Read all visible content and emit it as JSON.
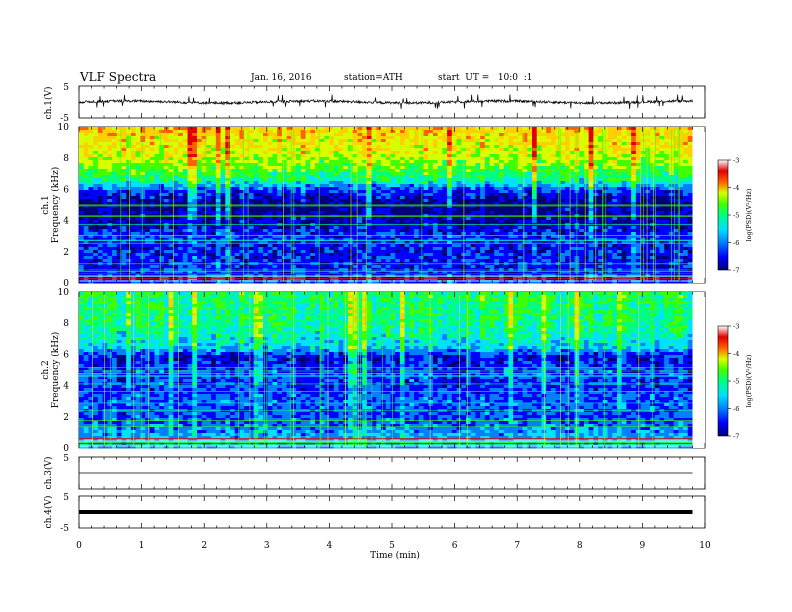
{
  "header": {
    "title": "VLF Spectra",
    "date": "Jan. 16, 2016",
    "station": "station=ATH",
    "start": "start  UT =   10:0  :1"
  },
  "chart_data": [
    {
      "type": "line",
      "panel": "ch1-waveform",
      "ylabel": "ch.1(V)",
      "ylim": [
        -5,
        5
      ],
      "y_ticks": [
        "5",
        "-5"
      ],
      "xlim": [
        0,
        10
      ],
      "data_end_min": 9.8,
      "baseline_v": 0.0,
      "description_values": {
        "typical_amplitude_v": 0.4,
        "spike_amplitude_v": 1.8
      }
    },
    {
      "type": "heatmap",
      "panel": "ch1-spectrogram",
      "ylabel_line1": "ch.1",
      "ylabel_line2": "Frequency  (kHz)",
      "ylim": [
        0,
        10
      ],
      "y_ticks": [
        "0",
        "2",
        "4",
        "6",
        "8",
        "10"
      ],
      "xlim": [
        0,
        10
      ],
      "data_end_min": 9.8,
      "colorbar": {
        "label": "log(PSD)(V²/Hz)",
        "range": [
          -7,
          -3
        ],
        "ticks": [
          "-3",
          "-4",
          "-5",
          "-6",
          "-7"
        ]
      },
      "profile_khz": [
        0,
        2,
        3,
        4,
        5,
        6,
        6.6,
        7.5,
        8.5,
        10
      ],
      "profile_logpsd": [
        -6.3,
        -6.4,
        -6.3,
        -6.6,
        -6.8,
        -6.2,
        -5.3,
        -4.7,
        -4.3,
        -4.0
      ]
    },
    {
      "type": "heatmap",
      "panel": "ch2-spectrogram",
      "ylabel_line1": "ch.2",
      "ylabel_line2": "Frequency  (kHz)",
      "ylim": [
        0,
        10
      ],
      "y_ticks": [
        "0",
        "2",
        "4",
        "6",
        "8",
        "10"
      ],
      "xlim": [
        0,
        10
      ],
      "data_end_min": 9.8,
      "colorbar": {
        "label": "log(PSD)(V²/Hz)",
        "range": [
          -7,
          -3
        ],
        "ticks": [
          "-3",
          "-4",
          "-5",
          "-6",
          "-7"
        ]
      },
      "profile_khz": [
        0,
        1,
        2,
        3,
        4,
        5,
        5.8,
        6.5,
        8,
        10
      ],
      "profile_logpsd": [
        -5.8,
        -5.9,
        -6.2,
        -6.1,
        -6.3,
        -6.2,
        -6.5,
        -5.6,
        -5.2,
        -5.1
      ]
    },
    {
      "type": "line",
      "panel": "ch3-waveform",
      "ylabel": "ch.3(V)",
      "ylim": [
        -5,
        5
      ],
      "y_ticks": [
        "5"
      ],
      "xlim": [
        0,
        10
      ],
      "data_end_min": 9.8,
      "baseline_v": 0.0
    },
    {
      "type": "line",
      "panel": "ch4-waveform",
      "ylabel": "ch.4(V)",
      "ylim": [
        -5,
        5
      ],
      "y_ticks": [
        "5",
        "-5"
      ],
      "xlim": [
        0,
        10
      ],
      "data_end_min": 9.8,
      "baseline_v": 0.0
    }
  ],
  "x_axis": {
    "label": "Time  (min)",
    "ticks": [
      "0",
      "1",
      "2",
      "3",
      "4",
      "5",
      "6",
      "7",
      "8",
      "9",
      "10"
    ]
  },
  "colors": {
    "scale": [
      "#00007a",
      "#0000ff",
      "#0080ff",
      "#00e0ff",
      "#00ff80",
      "#40ff00",
      "#d8ff00",
      "#ffd000",
      "#ff6000",
      "#e00000",
      "#ffffff"
    ]
  }
}
